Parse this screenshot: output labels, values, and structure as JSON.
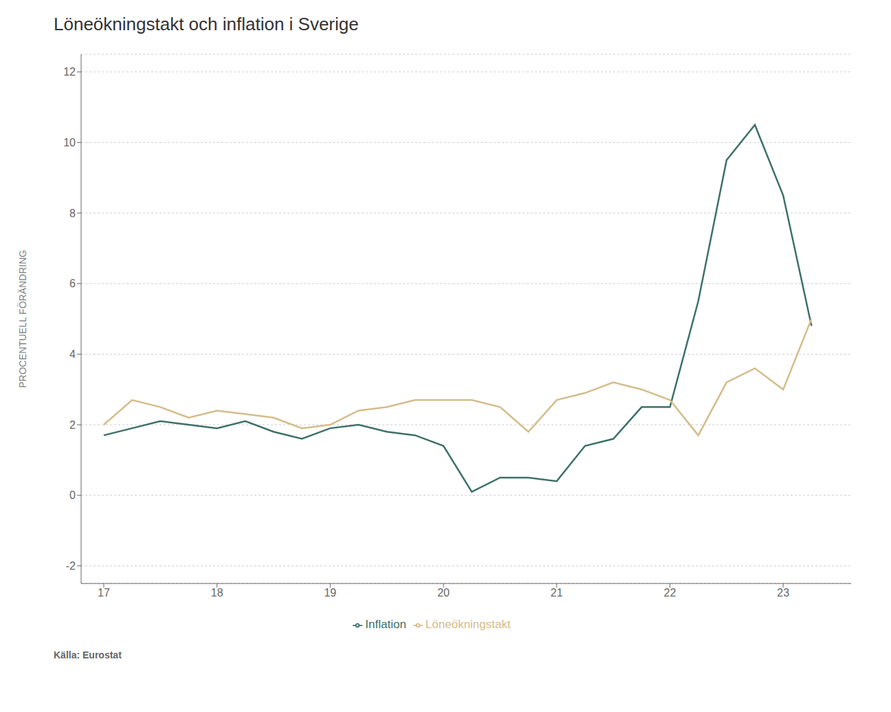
{
  "chart_data": {
    "type": "line",
    "title": "Löneökningstakt och inflation i Sverige",
    "ylabel": "PROCENTUELL FÖRÄNDRING",
    "source": "Källa: Eurostat",
    "x": [
      17.0,
      17.25,
      17.5,
      17.75,
      18.0,
      18.25,
      18.5,
      18.75,
      19.0,
      19.25,
      19.5,
      19.75,
      20.0,
      20.25,
      20.5,
      20.75,
      21.0,
      21.25,
      21.5,
      21.75,
      22.0,
      22.25,
      22.5,
      22.75,
      23.0,
      23.25
    ],
    "series": [
      {
        "name": "Inflation",
        "color": "#3d7068",
        "values": [
          1.7,
          1.9,
          2.1,
          2.0,
          1.9,
          2.1,
          1.8,
          1.6,
          1.9,
          2.0,
          1.8,
          1.7,
          1.4,
          0.1,
          0.5,
          0.5,
          0.4,
          1.4,
          1.6,
          2.5,
          2.5,
          5.5,
          9.5,
          10.5,
          8.5,
          4.8
        ]
      },
      {
        "name": "Löneökningstakt",
        "color": "#d4bc8a",
        "values": [
          2.0,
          2.7,
          2.5,
          2.2,
          2.4,
          2.3,
          2.2,
          1.9,
          2.0,
          2.4,
          2.5,
          2.7,
          2.7,
          2.7,
          2.5,
          1.8,
          2.7,
          2.9,
          3.2,
          3.0,
          2.7,
          1.7,
          3.2,
          3.6,
          3.0,
          5.0
        ]
      }
    ],
    "xlim": [
      16.8,
      23.6
    ],
    "xticks": [
      17,
      18,
      19,
      20,
      21,
      22,
      23
    ],
    "ylim": [
      -2.5,
      12.5
    ],
    "yticks": [
      -2,
      0,
      2,
      4,
      6,
      8,
      10,
      12
    ],
    "grid": true,
    "legend": "bottom"
  }
}
